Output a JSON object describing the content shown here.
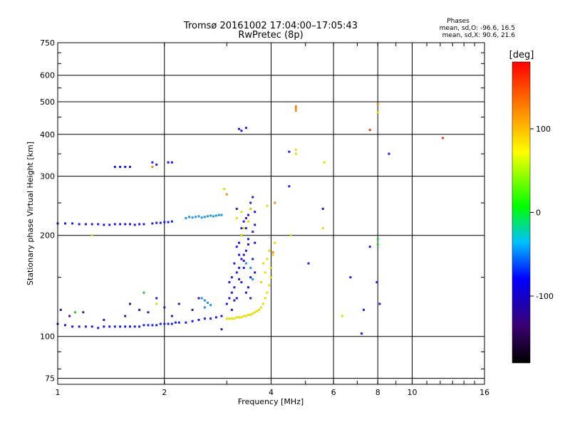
{
  "chart_data": {
    "type": "scatter",
    "title_line1": "Tromsø 20161002 17:04:00–17:05:43",
    "title_line2": "RwPretec (8p)",
    "xlabel": "Frequency [MHz]",
    "ylabel": "Stationary phase Virtual Height [km]",
    "x_scale": "log",
    "y_scale": "log",
    "xlim": [
      1,
      16
    ],
    "ylim": [
      72,
      750
    ],
    "x_ticks": [
      1,
      2,
      4,
      6,
      8,
      10,
      16
    ],
    "y_ticks": [
      75,
      100,
      200,
      300,
      400,
      500,
      600,
      750
    ],
    "grid": true,
    "info": {
      "heading": "Phases",
      "line1": "mean, sd,O: -96.6, 16.5",
      "line2": "mean, sd,X:  90.6, 21.6"
    },
    "colorbar": {
      "label": "[deg]",
      "range": [
        -180,
        180
      ],
      "ticks": [
        -100,
        0,
        100
      ],
      "colormap": [
        "#000000",
        "#3a006e",
        "#0000ff",
        "#00bfff",
        "#00ff00",
        "#ffff00",
        "#ff8000",
        "#ff0000"
      ]
    },
    "marker_colors": {
      "o_mode_blue": "#1e1ed2",
      "o_mode_dark": "#3c14a0",
      "cyan": "#1e96dc",
      "x_mode_yellow": "#e6dc00",
      "orange": "#f08c1e",
      "red": "#dc3c14",
      "green": "#32c832",
      "yellow_green": "#c8e61e"
    },
    "series": [
      {
        "name": "O-mode E trace",
        "color": "o_mode_blue",
        "points": [
          [
            1.0,
            109
          ],
          [
            1.05,
            108
          ],
          [
            1.1,
            107
          ],
          [
            1.15,
            107
          ],
          [
            1.2,
            107
          ],
          [
            1.25,
            107
          ],
          [
            1.3,
            106
          ],
          [
            1.35,
            107
          ],
          [
            1.4,
            107
          ],
          [
            1.45,
            107
          ],
          [
            1.5,
            107
          ],
          [
            1.55,
            107
          ],
          [
            1.6,
            107
          ],
          [
            1.65,
            107
          ],
          [
            1.7,
            107
          ],
          [
            1.75,
            108
          ],
          [
            1.8,
            108
          ],
          [
            1.85,
            108
          ],
          [
            1.9,
            108
          ],
          [
            1.95,
            109
          ],
          [
            2.0,
            109
          ],
          [
            2.05,
            109
          ],
          [
            2.1,
            109
          ],
          [
            2.15,
            110
          ],
          [
            2.2,
            110
          ],
          [
            2.3,
            110
          ],
          [
            2.4,
            111
          ],
          [
            2.5,
            112
          ],
          [
            2.6,
            113
          ],
          [
            2.7,
            113
          ],
          [
            2.8,
            114
          ],
          [
            2.9,
            115
          ]
        ]
      },
      {
        "name": "O-mode F trace",
        "color": "o_mode_blue",
        "points": [
          [
            1.0,
            217
          ],
          [
            1.05,
            217
          ],
          [
            1.1,
            217
          ],
          [
            1.15,
            216
          ],
          [
            1.2,
            216
          ],
          [
            1.25,
            216
          ],
          [
            1.3,
            216
          ],
          [
            1.35,
            215
          ],
          [
            1.4,
            215
          ],
          [
            1.45,
            216
          ],
          [
            1.5,
            216
          ],
          [
            1.55,
            216
          ],
          [
            1.6,
            216
          ],
          [
            1.65,
            215
          ],
          [
            1.7,
            216
          ],
          [
            1.75,
            216
          ],
          [
            1.85,
            217
          ],
          [
            1.9,
            218
          ],
          [
            1.95,
            218
          ],
          [
            2.0,
            219
          ],
          [
            2.05,
            219
          ],
          [
            2.1,
            220
          ]
        ]
      },
      {
        "name": "O-mode F cyan",
        "color": "cyan",
        "points": [
          [
            2.3,
            225
          ],
          [
            2.35,
            227
          ],
          [
            2.4,
            226
          ],
          [
            2.45,
            227
          ],
          [
            2.5,
            228
          ],
          [
            2.55,
            226
          ],
          [
            2.6,
            227
          ],
          [
            2.65,
            228
          ],
          [
            2.7,
            229
          ],
          [
            2.75,
            228
          ],
          [
            2.8,
            229
          ],
          [
            2.85,
            230
          ],
          [
            2.9,
            230
          ]
        ]
      },
      {
        "name": "F2 scatter blue",
        "color": "o_mode_blue",
        "points": [
          [
            3.0,
            125
          ],
          [
            3.05,
            130
          ],
          [
            3.1,
            135
          ],
          [
            3.15,
            140
          ],
          [
            3.1,
            150
          ],
          [
            3.2,
            155
          ],
          [
            3.25,
            160
          ],
          [
            3.15,
            165
          ],
          [
            3.3,
            170
          ],
          [
            3.35,
            175
          ],
          [
            3.4,
            180
          ],
          [
            3.2,
            185
          ],
          [
            3.25,
            190
          ],
          [
            3.45,
            195
          ],
          [
            3.3,
            200
          ],
          [
            3.4,
            210
          ],
          [
            3.35,
            220
          ],
          [
            3.45,
            230
          ],
          [
            3.5,
            240
          ],
          [
            3.5,
            250
          ],
          [
            3.55,
            260
          ],
          [
            3.3,
            145
          ],
          [
            3.4,
            135
          ],
          [
            3.5,
            150
          ],
          [
            3.55,
            170
          ],
          [
            3.6,
            190
          ],
          [
            3.2,
            130
          ],
          [
            3.35,
            160
          ],
          [
            3.45,
            140
          ],
          [
            3.6,
            215
          ],
          [
            3.6,
            235
          ],
          [
            3.25,
            175
          ],
          [
            3.3,
            210
          ],
          [
            3.1,
            120
          ],
          [
            3.05,
            145
          ]
        ]
      },
      {
        "name": "F2 scatter dark",
        "color": "o_mode_dark",
        "points": [
          [
            3.15,
            128
          ],
          [
            3.25,
            148
          ],
          [
            3.35,
            168
          ],
          [
            3.45,
            188
          ],
          [
            3.55,
            205
          ],
          [
            3.4,
            225
          ],
          [
            3.2,
            240
          ],
          [
            3.5,
            130
          ],
          [
            3.6,
            155
          ]
        ]
      },
      {
        "name": "cyan cluster",
        "color": "cyan",
        "points": [
          [
            2.55,
            130
          ],
          [
            2.6,
            128
          ],
          [
            2.65,
            126
          ],
          [
            2.7,
            124
          ],
          [
            2.6,
            122
          ],
          [
            3.4,
            165
          ],
          [
            3.5,
            160
          ],
          [
            3.55,
            148
          ]
        ]
      },
      {
        "name": "X-mode trace",
        "color": "x_mode_yellow",
        "points": [
          [
            3.0,
            113
          ],
          [
            3.05,
            113
          ],
          [
            3.1,
            113
          ],
          [
            3.15,
            113
          ],
          [
            3.2,
            114
          ],
          [
            3.25,
            114
          ],
          [
            3.3,
            114
          ],
          [
            3.35,
            115
          ],
          [
            3.4,
            115
          ],
          [
            3.45,
            116
          ],
          [
            3.5,
            116
          ],
          [
            3.55,
            117
          ],
          [
            3.6,
            118
          ],
          [
            3.65,
            119
          ],
          [
            3.7,
            120
          ],
          [
            3.75,
            122
          ],
          [
            3.8,
            125
          ],
          [
            3.85,
            130
          ],
          [
            3.9,
            135
          ],
          [
            3.95,
            142
          ],
          [
            4.0,
            150
          ],
          [
            4.0,
            160
          ],
          [
            3.9,
            170
          ],
          [
            3.95,
            180
          ],
          [
            3.8,
            165
          ],
          [
            3.85,
            155
          ],
          [
            3.75,
            145
          ],
          [
            3.3,
            200
          ],
          [
            3.35,
            210
          ],
          [
            3.45,
            220
          ],
          [
            3.5,
            240
          ],
          [
            3.3,
            235
          ],
          [
            3.2,
            225
          ],
          [
            4.05,
            175
          ],
          [
            4.1,
            190
          ],
          [
            3.9,
            245
          ]
        ]
      },
      {
        "name": "E-region spread",
        "color": "o_mode_dark",
        "points": [
          [
            1.02,
            120
          ],
          [
            1.08,
            115
          ],
          [
            1.18,
            118
          ],
          [
            1.35,
            112
          ],
          [
            1.55,
            115
          ],
          [
            1.6,
            125
          ],
          [
            1.7,
            120
          ],
          [
            1.8,
            118
          ],
          [
            1.9,
            130
          ],
          [
            2.0,
            122
          ],
          [
            2.1,
            115
          ],
          [
            2.2,
            125
          ],
          [
            2.4,
            120
          ],
          [
            2.5,
            130
          ],
          [
            2.9,
            105
          ]
        ]
      },
      {
        "name": "high echoes",
        "color": "o_mode_blue",
        "points": [
          [
            1.45,
            320
          ],
          [
            1.5,
            320
          ],
          [
            1.55,
            320
          ],
          [
            1.6,
            320
          ],
          [
            1.85,
            330
          ],
          [
            1.9,
            325
          ],
          [
            2.05,
            330
          ],
          [
            2.1,
            330
          ],
          [
            3.25,
            415
          ],
          [
            3.3,
            410
          ],
          [
            3.4,
            418
          ],
          [
            4.5,
            355
          ],
          [
            4.5,
            280
          ],
          [
            5.6,
            240
          ],
          [
            5.1,
            165
          ],
          [
            6.7,
            150
          ],
          [
            7.6,
            185
          ],
          [
            7.95,
            145
          ],
          [
            8.1,
            125
          ],
          [
            8.6,
            350
          ],
          [
            7.3,
            120
          ],
          [
            7.2,
            102
          ]
        ]
      },
      {
        "name": "sparse orange",
        "color": "orange",
        "points": [
          [
            4.7,
            485
          ],
          [
            4.7,
            478
          ],
          [
            4.7,
            470
          ],
          [
            3.0,
            265
          ],
          [
            4.1,
            250
          ],
          [
            4.05,
            178
          ],
          [
            1.85,
            320
          ],
          [
            8.0,
            492
          ]
        ]
      },
      {
        "name": "sparse red",
        "color": "red",
        "points": [
          [
            7.6,
            412
          ],
          [
            12.2,
            390
          ]
        ]
      },
      {
        "name": "sparse yellow",
        "color": "x_mode_yellow",
        "points": [
          [
            4.7,
            360
          ],
          [
            4.7,
            350
          ],
          [
            5.65,
            330
          ],
          [
            5.6,
            210
          ],
          [
            8.0,
            465
          ],
          [
            6.35,
            115
          ],
          [
            2.95,
            275
          ]
        ]
      },
      {
        "name": "sparse green",
        "color": "green",
        "points": [
          [
            1.75,
            135
          ],
          [
            1.12,
            118
          ],
          [
            8.0,
            195
          ],
          [
            8.0,
            188
          ]
        ]
      },
      {
        "name": "sparse yellow-green",
        "color": "yellow_green",
        "points": [
          [
            1.25,
            200
          ],
          [
            1.9,
            125
          ],
          [
            4.55,
            200
          ]
        ]
      }
    ]
  }
}
